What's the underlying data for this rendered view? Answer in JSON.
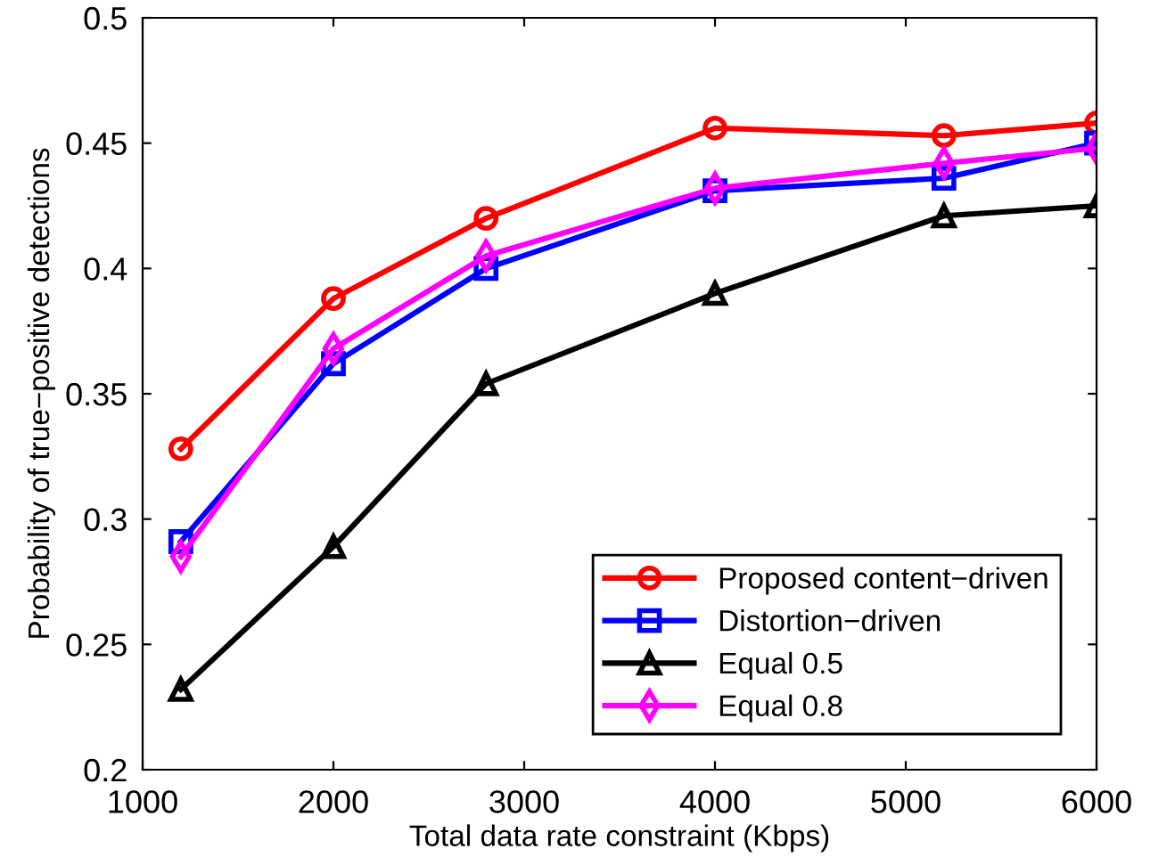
{
  "chart_data": {
    "type": "line",
    "xlabel": "Total data rate constraint (Kbps)",
    "ylabel": "Probability of true−positive detections",
    "x": [
      1200,
      2000,
      2800,
      4000,
      5200,
      6000
    ],
    "series": [
      {
        "name": "Proposed content−driven",
        "color": "#ff0000",
        "marker": "circle",
        "values": [
          0.328,
          0.388,
          0.42,
          0.456,
          0.453,
          0.458
        ]
      },
      {
        "name": "Distortion−driven",
        "color": "#0000ff",
        "marker": "square",
        "values": [
          0.291,
          0.362,
          0.4,
          0.431,
          0.436,
          0.45
        ]
      },
      {
        "name": "Equal 0.5",
        "color": "#000000",
        "marker": "triangle",
        "values": [
          0.232,
          0.289,
          0.354,
          0.39,
          0.421,
          0.425
        ]
      },
      {
        "name": "Equal 0.8",
        "color": "#ff00ff",
        "marker": "diamond",
        "values": [
          0.285,
          0.368,
          0.405,
          0.432,
          0.442,
          0.448
        ]
      }
    ],
    "xlim": [
      1000,
      6000
    ],
    "xticks": [
      1000,
      2000,
      3000,
      4000,
      5000,
      6000
    ],
    "ylim": [
      0.2,
      0.5
    ],
    "yticks": [
      0.2,
      0.25,
      0.3,
      0.35,
      0.4,
      0.45,
      0.5
    ],
    "grid": false,
    "legend": "bottom right",
    "line_style": "solid"
  }
}
